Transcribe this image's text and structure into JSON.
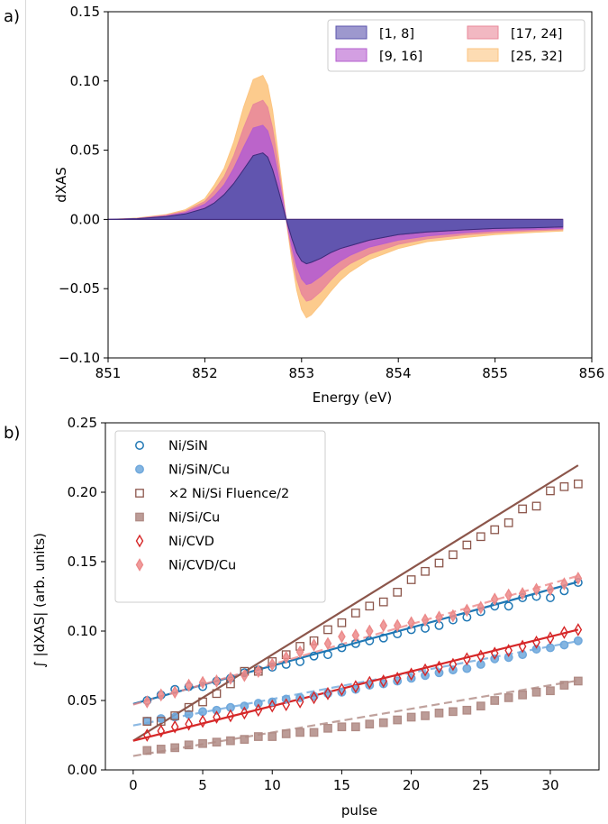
{
  "chart_data": [
    {
      "panel_label": "a)",
      "type": "area",
      "xlabel": "Energy (eV)",
      "ylabel": "dXAS",
      "xlim": [
        851,
        856
      ],
      "ylim": [
        -0.1,
        0.15
      ],
      "xticks": [
        "851",
        "852",
        "853",
        "854",
        "855",
        "856"
      ],
      "yticks": [
        "−0.10",
        "−0.05",
        "0.00",
        "0.05",
        "0.10",
        "0.15"
      ],
      "ytick_values": [
        -0.1,
        -0.05,
        0.0,
        0.05,
        0.1,
        0.15
      ],
      "xtick_values": [
        851,
        852,
        853,
        854,
        855,
        856
      ],
      "legend_position": "top-right",
      "legend_columns": 2,
      "grid": false,
      "series": [
        {
          "name": "[1, 8]",
          "color": "#5c54ad",
          "x": [
            851.0,
            851.3,
            851.6,
            851.8,
            852.0,
            852.1,
            852.2,
            852.3,
            852.4,
            852.5,
            852.6,
            852.65,
            852.7,
            852.75,
            852.8,
            852.85,
            852.9,
            852.95,
            853.0,
            853.05,
            853.1,
            853.2,
            853.3,
            853.4,
            853.5,
            853.7,
            854.0,
            854.3,
            854.7,
            855.0,
            855.4,
            855.7
          ],
          "y": [
            0.0,
            0.0005,
            0.002,
            0.004,
            0.008,
            0.012,
            0.018,
            0.026,
            0.036,
            0.046,
            0.048,
            0.045,
            0.036,
            0.024,
            0.011,
            -0.002,
            -0.014,
            -0.024,
            -0.03,
            -0.032,
            -0.031,
            -0.028,
            -0.024,
            -0.021,
            -0.019,
            -0.015,
            -0.011,
            -0.009,
            -0.0075,
            -0.0065,
            -0.006,
            -0.0055
          ]
        },
        {
          "name": "[9, 16]",
          "color": "#b65fcf",
          "x": [
            851.0,
            851.3,
            851.6,
            851.8,
            852.0,
            852.1,
            852.2,
            852.3,
            852.4,
            852.5,
            852.6,
            852.65,
            852.7,
            852.75,
            852.8,
            852.85,
            852.9,
            852.95,
            853.0,
            853.05,
            853.1,
            853.2,
            853.3,
            853.4,
            853.5,
            853.7,
            854.0,
            854.3,
            854.7,
            855.0,
            855.4,
            855.7
          ],
          "y": [
            0.0,
            0.0006,
            0.0025,
            0.005,
            0.011,
            0.017,
            0.025,
            0.037,
            0.052,
            0.066,
            0.068,
            0.064,
            0.052,
            0.035,
            0.016,
            -0.003,
            -0.02,
            -0.034,
            -0.043,
            -0.047,
            -0.046,
            -0.041,
            -0.035,
            -0.03,
            -0.026,
            -0.02,
            -0.015,
            -0.012,
            -0.0095,
            -0.0082,
            -0.0072,
            -0.0065
          ]
        },
        {
          "name": "[17, 24]",
          "color": "#e9899a",
          "x": [
            851.0,
            851.3,
            851.6,
            851.8,
            852.0,
            852.1,
            852.2,
            852.3,
            852.4,
            852.5,
            852.6,
            852.65,
            852.7,
            852.75,
            852.8,
            852.85,
            852.9,
            852.95,
            853.0,
            853.05,
            853.1,
            853.2,
            853.3,
            853.4,
            853.5,
            853.7,
            854.0,
            854.3,
            854.7,
            855.0,
            855.4,
            855.7
          ],
          "y": [
            0.0,
            0.0008,
            0.003,
            0.006,
            0.013,
            0.021,
            0.031,
            0.046,
            0.066,
            0.083,
            0.086,
            0.081,
            0.066,
            0.044,
            0.02,
            -0.004,
            -0.025,
            -0.043,
            -0.054,
            -0.059,
            -0.058,
            -0.052,
            -0.044,
            -0.037,
            -0.032,
            -0.025,
            -0.018,
            -0.014,
            -0.011,
            -0.0095,
            -0.0082,
            -0.0074
          ]
        },
        {
          "name": "[25, 32]",
          "color": "#fcc581",
          "x": [
            851.0,
            851.3,
            851.6,
            851.8,
            852.0,
            852.1,
            852.2,
            852.3,
            852.4,
            852.5,
            852.6,
            852.65,
            852.7,
            852.75,
            852.8,
            852.85,
            852.9,
            852.95,
            853.0,
            853.05,
            853.1,
            853.2,
            853.3,
            853.4,
            853.5,
            853.7,
            854.0,
            854.3,
            854.7,
            855.0,
            855.4,
            855.7
          ],
          "y": [
            0.0,
            0.001,
            0.0035,
            0.007,
            0.015,
            0.025,
            0.037,
            0.056,
            0.081,
            0.101,
            0.104,
            0.097,
            0.079,
            0.052,
            0.024,
            -0.005,
            -0.03,
            -0.051,
            -0.065,
            -0.071,
            -0.069,
            -0.061,
            -0.052,
            -0.044,
            -0.038,
            -0.029,
            -0.021,
            -0.016,
            -0.013,
            -0.011,
            -0.0094,
            -0.0084
          ]
        }
      ]
    },
    {
      "panel_label": "b)",
      "type": "scatter",
      "xlabel": "pulse",
      "ylabel": "∫ |dXAS| (arb. units)",
      "xlim": [
        -2,
        33.5
      ],
      "ylim": [
        0.0,
        0.25
      ],
      "xticks": [
        "0",
        "5",
        "10",
        "15",
        "20",
        "25",
        "30"
      ],
      "xtick_values": [
        0,
        5,
        10,
        15,
        20,
        25,
        30
      ],
      "yticks": [
        "0.00",
        "0.05",
        "0.10",
        "0.15",
        "0.20",
        "0.25"
      ],
      "ytick_values": [
        0.0,
        0.05,
        0.1,
        0.15,
        0.2,
        0.25
      ],
      "legend_position": "top-left",
      "grid": false,
      "x": [
        1,
        2,
        3,
        4,
        5,
        6,
        7,
        8,
        9,
        10,
        11,
        12,
        13,
        14,
        15,
        16,
        17,
        18,
        19,
        20,
        21,
        22,
        23,
        24,
        25,
        26,
        27,
        28,
        29,
        30,
        31,
        32
      ],
      "series": [
        {
          "name": "Ni/SiN",
          "marker": "circle-open",
          "color": "#1f77b4",
          "fit": "solid",
          "fit_line": [
            0.0475,
            0.00275
          ],
          "values": [
            0.05,
            0.054,
            0.058,
            0.06,
            0.06,
            0.064,
            0.066,
            0.07,
            0.072,
            0.074,
            0.076,
            0.078,
            0.082,
            0.083,
            0.088,
            0.091,
            0.093,
            0.095,
            0.098,
            0.101,
            0.102,
            0.104,
            0.108,
            0.11,
            0.114,
            0.118,
            0.118,
            0.124,
            0.125,
            0.124,
            0.129,
            0.135
          ]
        },
        {
          "name": "Ni/SiN/Cu",
          "marker": "circle-filled",
          "color": "#6fa8dc",
          "fit": "dashed",
          "fit_line": [
            0.032,
            0.0019
          ],
          "values": [
            0.035,
            0.037,
            0.038,
            0.04,
            0.042,
            0.043,
            0.045,
            0.046,
            0.048,
            0.049,
            0.051,
            0.052,
            0.053,
            0.055,
            0.056,
            0.058,
            0.061,
            0.062,
            0.064,
            0.066,
            0.068,
            0.07,
            0.072,
            0.073,
            0.076,
            0.08,
            0.081,
            0.083,
            0.087,
            0.088,
            0.09,
            0.093
          ]
        },
        {
          "name": "×2 Ni/Si Fluence/2",
          "marker": "square-open",
          "color": "#8c564b",
          "fit": "solid",
          "fit_line": [
            0.021,
            0.0062
          ],
          "values": [
            0.035,
            0.035,
            0.039,
            0.045,
            0.049,
            0.055,
            0.062,
            0.071,
            0.071,
            0.078,
            0.083,
            0.089,
            0.093,
            0.101,
            0.106,
            0.113,
            0.118,
            0.121,
            0.128,
            0.137,
            0.143,
            0.149,
            0.155,
            0.162,
            0.168,
            0.173,
            0.178,
            0.188,
            0.19,
            0.201,
            0.204,
            0.206
          ]
        },
        {
          "name": "Ni/Si/Cu",
          "marker": "square-filled",
          "color": "#b08b85",
          "fit": "dashed",
          "fit_line": [
            0.01,
            0.0017
          ],
          "values": [
            0.014,
            0.015,
            0.016,
            0.018,
            0.019,
            0.02,
            0.021,
            0.022,
            0.024,
            0.024,
            0.026,
            0.027,
            0.027,
            0.03,
            0.031,
            0.031,
            0.033,
            0.034,
            0.036,
            0.038,
            0.039,
            0.041,
            0.042,
            0.043,
            0.046,
            0.05,
            0.052,
            0.054,
            0.056,
            0.057,
            0.061,
            0.064
          ]
        },
        {
          "name": "Ni/CVD",
          "marker": "diamond-open",
          "color": "#d62728",
          "fit": "solid",
          "fit_line": [
            0.021,
            0.0025
          ],
          "values": [
            0.025,
            0.028,
            0.031,
            0.033,
            0.035,
            0.038,
            0.039,
            0.041,
            0.043,
            0.046,
            0.047,
            0.049,
            0.052,
            0.055,
            0.058,
            0.06,
            0.063,
            0.064,
            0.066,
            0.069,
            0.072,
            0.074,
            0.076,
            0.08,
            0.082,
            0.084,
            0.086,
            0.089,
            0.092,
            0.095,
            0.099,
            0.101
          ]
        },
        {
          "name": "Ni/CVD/Cu",
          "marker": "diamond-filled",
          "color": "#ec8a8a",
          "fit": "dashed",
          "fit_line": [
            0.047,
            0.0029
          ],
          "values": [
            0.049,
            0.054,
            0.056,
            0.061,
            0.063,
            0.064,
            0.066,
            0.068,
            0.071,
            0.076,
            0.081,
            0.085,
            0.09,
            0.091,
            0.096,
            0.097,
            0.1,
            0.104,
            0.104,
            0.106,
            0.108,
            0.11,
            0.111,
            0.115,
            0.117,
            0.123,
            0.126,
            0.127,
            0.13,
            0.13,
            0.134,
            0.138
          ]
        }
      ]
    }
  ]
}
